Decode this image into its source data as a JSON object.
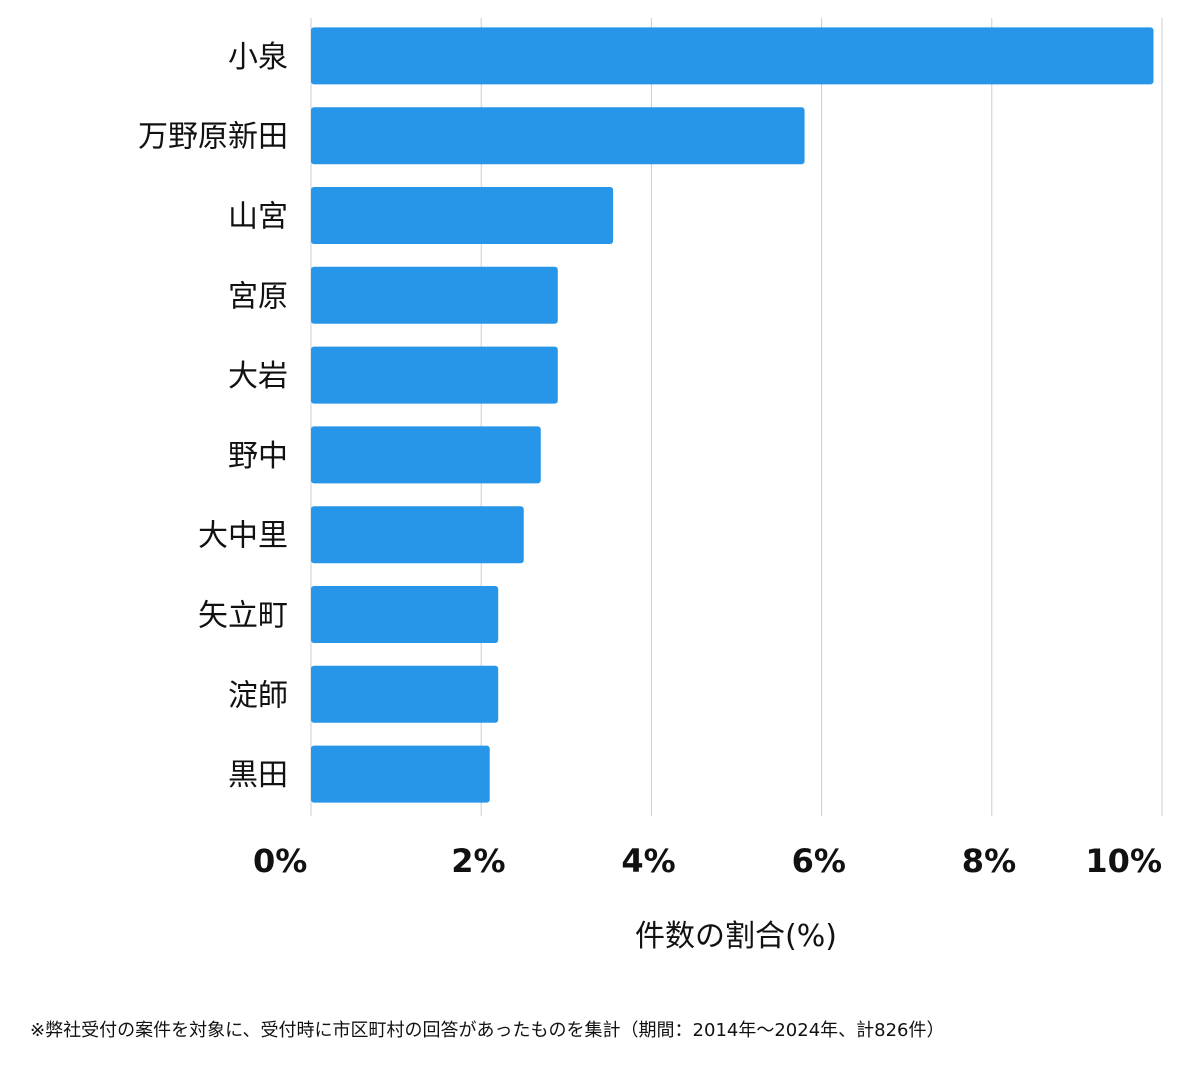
{
  "chart_data": {
    "type": "bar",
    "orientation": "horizontal",
    "categories": [
      "小泉",
      "万野原新田",
      "山宮",
      "宮原",
      "大岩",
      "野中",
      "大中里",
      "矢立町",
      "淀師",
      "黒田"
    ],
    "values": [
      9.9,
      5.8,
      3.55,
      2.9,
      2.9,
      2.7,
      2.5,
      2.2,
      2.2,
      2.1
    ],
    "x_ticks": [
      "0%",
      "2%",
      "4%",
      "6%",
      "8%",
      "10%"
    ],
    "xlim": [
      0,
      10
    ],
    "xlabel": "件数の割合(%)",
    "grid": true,
    "bar_color": "#2795e8"
  },
  "footnote": "※弊社受付の案件を対象に、受付時に市区町村の回答があったものを集計（期間：2014年～2024年、計826件）"
}
